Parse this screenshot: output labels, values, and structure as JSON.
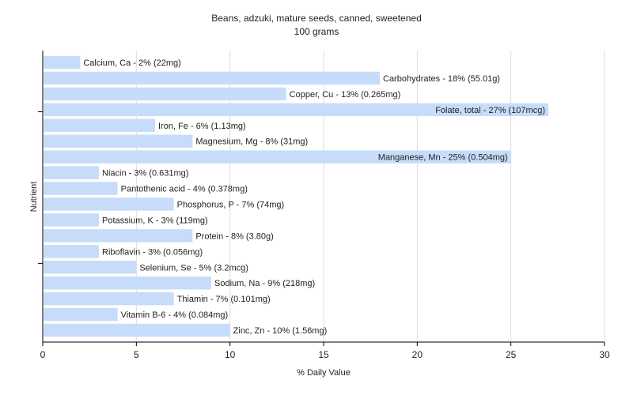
{
  "chart_data": {
    "type": "bar",
    "orientation": "horizontal",
    "title": "Beans, adzuki, mature seeds, canned, sweetened",
    "subtitle": "100 grams",
    "xlabel": "% Daily Value",
    "ylabel": "Nutrient",
    "xlim": [
      0,
      30
    ],
    "xticks": [
      0,
      5,
      10,
      15,
      20,
      25,
      30
    ],
    "grid": "vertical",
    "bar_color": "#c6dcfa",
    "categories": [
      "Calcium, Ca",
      "Carbohydrates",
      "Copper, Cu",
      "Folate, total",
      "Iron, Fe",
      "Magnesium, Mg",
      "Manganese, Mn",
      "Niacin",
      "Pantothenic acid",
      "Phosphorus, P",
      "Potassium, K",
      "Protein",
      "Riboflavin",
      "Selenium, Se",
      "Sodium, Na",
      "Thiamin",
      "Vitamin B-6",
      "Zinc, Zn"
    ],
    "values": [
      2,
      18,
      13,
      27,
      6,
      8,
      25,
      3,
      4,
      7,
      3,
      8,
      3,
      5,
      9,
      7,
      4,
      10
    ],
    "labels": [
      "Calcium, Ca - 2% (22mg)",
      "Carbohydrates - 18% (55.01g)",
      "Copper, Cu - 13% (0.265mg)",
      "Folate, total - 27% (107mcg)",
      "Iron, Fe - 6% (1.13mg)",
      "Magnesium, Mg - 8% (31mg)",
      "Manganese, Mn - 25% (0.504mg)",
      "Niacin - 3% (0.631mg)",
      "Pantothenic acid - 4% (0.378mg)",
      "Phosphorus, P - 7% (74mg)",
      "Potassium, K - 3% (119mg)",
      "Protein - 8% (3.80g)",
      "Riboflavin - 3% (0.056mg)",
      "Selenium, Se - 5% (3.2mcg)",
      "Sodium, Na - 9% (218mg)",
      "Thiamin - 7% (0.101mg)",
      "Vitamin B-6 - 4% (0.084mg)",
      "Zinc, Zn - 10% (1.56mg)"
    ]
  }
}
